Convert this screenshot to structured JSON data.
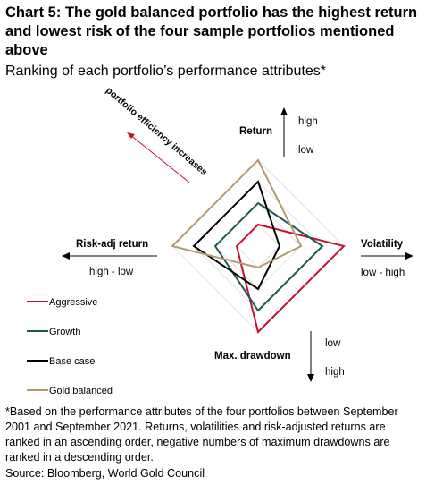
{
  "title": "Chart 5: The gold balanced portfolio has the highest return and lowest risk of the four sample portfolios mentioned above",
  "subtitle": "Ranking of each portfolio’s performance attributes*",
  "chart_data": {
    "type": "radar",
    "axes": [
      {
        "key": "return",
        "label": "Return",
        "scale_hint": [
          "high",
          "low"
        ]
      },
      {
        "key": "volatility",
        "label": "Volatility",
        "scale_hint": [
          "low - high"
        ]
      },
      {
        "key": "max_drawdown",
        "label": "Max. drawdown",
        "scale_hint": [
          "low",
          "high"
        ]
      },
      {
        "key": "risk_adj_return",
        "label": "Risk-adj return",
        "scale_hint": [
          "high - low"
        ]
      }
    ],
    "rank_max": 4,
    "series": [
      {
        "name": "Aggressive",
        "color": "#c8102e",
        "values": {
          "return": 1,
          "volatility": 4,
          "max_drawdown": 4,
          "risk_adj_return": 1
        }
      },
      {
        "name": "Growth",
        "color": "#1e5a4c",
        "values": {
          "return": 2,
          "volatility": 3,
          "max_drawdown": 3,
          "risk_adj_return": 2
        }
      },
      {
        "name": "Base case",
        "color": "#000000",
        "values": {
          "return": 3,
          "volatility": 1,
          "max_drawdown": 2,
          "risk_adj_return": 3
        }
      },
      {
        "name": "Gold balanced",
        "color": "#b39b6c",
        "values": {
          "return": 4,
          "volatility": 2,
          "max_drawdown": 1,
          "risk_adj_return": 4
        }
      }
    ],
    "annotation": "portfolio efficiency increases",
    "annotation_color": "#c8102e"
  },
  "footnote": "*Based on the performance attributes of the four portfolios between September 2001 and September 2021. Returns, volatilities and risk-adjusted returns are ranked in an ascending order, negative numbers of maximum drawdowns are ranked in a descending order.",
  "source": "Source: Bloomberg, World Gold Council"
}
